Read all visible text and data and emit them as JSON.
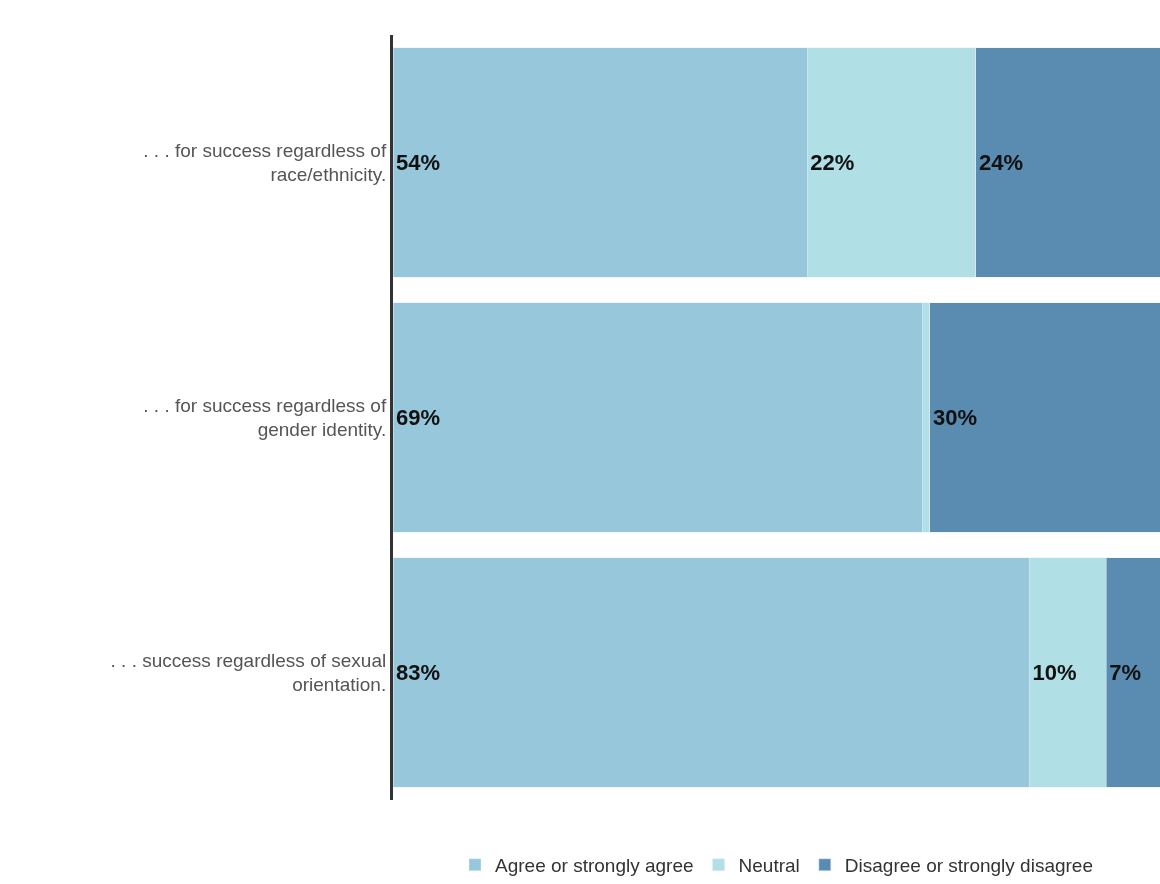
{
  "chart_data": {
    "type": "bar",
    "orientation": "horizontal",
    "stacked": true,
    "categories": [
      ". . . for success regardless of race/ethnicity.",
      ". . . for success regardless of gender identity.",
      ". . . success regardless of sexual orientation."
    ],
    "series": [
      {
        "name": "Agree or strongly agree",
        "color": "#97c7da",
        "values": [
          54,
          69,
          83
        ],
        "value_labels": [
          "54%",
          "69%",
          "83%"
        ]
      },
      {
        "name": "Neutral",
        "color": "#b0dfe5",
        "values": [
          22,
          1,
          10
        ],
        "value_labels": [
          "22%",
          null,
          "10%"
        ]
      },
      {
        "name": "Disagree or strongly disagree",
        "color": "#5a8bb0",
        "values": [
          24,
          30,
          7
        ],
        "value_labels": [
          "24%",
          "30%",
          "7%"
        ]
      }
    ],
    "xlim": [
      0,
      100
    ],
    "tick_labels": "y",
    "legend": "bottom"
  }
}
